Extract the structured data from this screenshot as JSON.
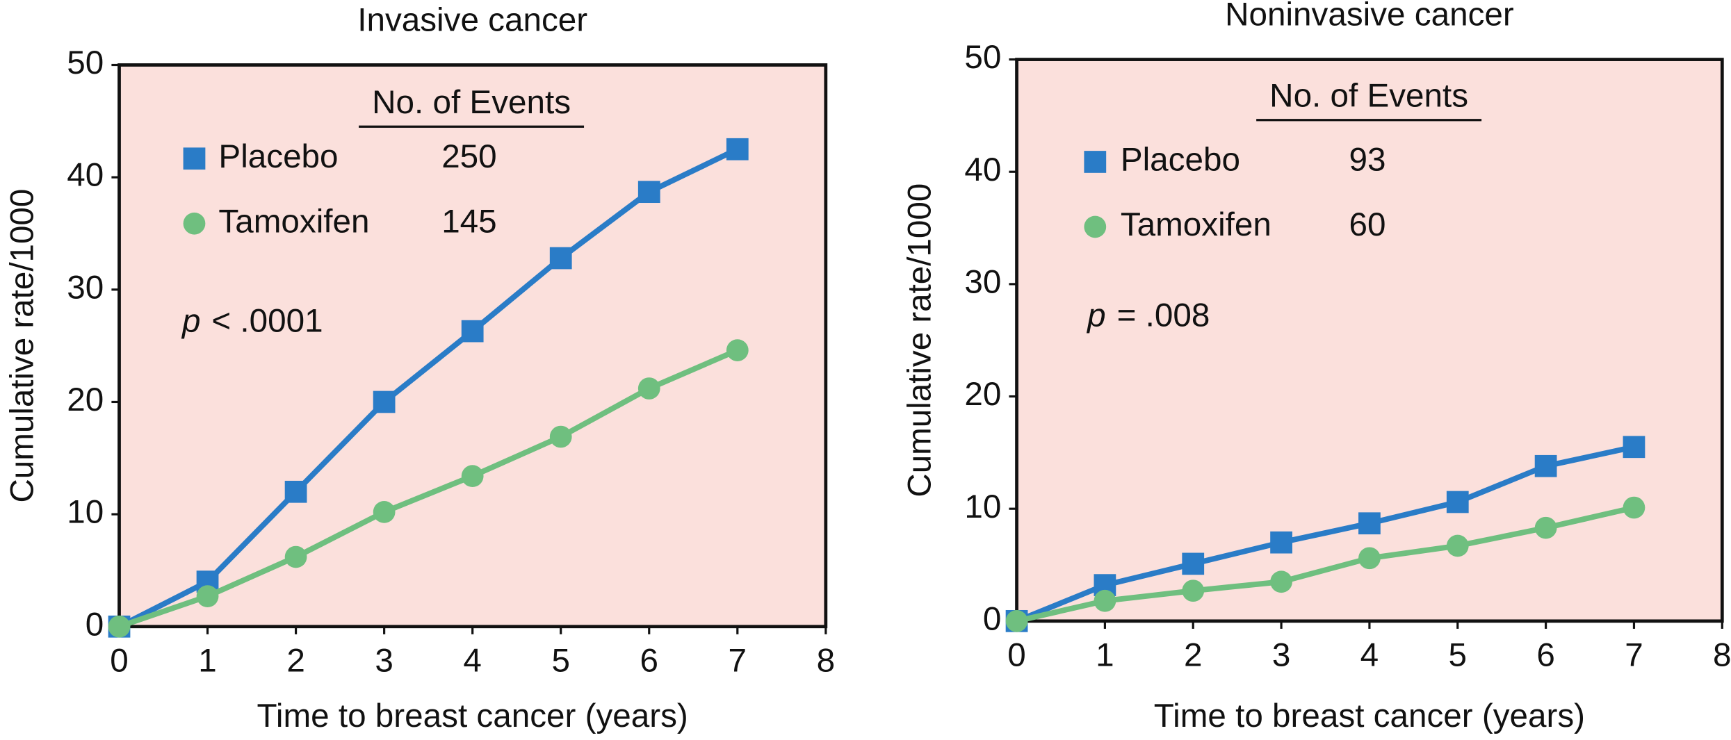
{
  "chart_data": [
    {
      "type": "line",
      "title": "Invasive cancer",
      "xlabel": "Time to breast cancer (years)",
      "ylabel": "Cumulative rate/1000",
      "x": [
        0,
        1,
        2,
        3,
        4,
        5,
        6,
        7
      ],
      "series": [
        {
          "name": "Placebo",
          "color": "#2a7cc7",
          "marker": "square",
          "events": 250,
          "values": [
            0,
            4,
            12,
            20,
            26.3,
            32.8,
            38.7,
            42.5
          ]
        },
        {
          "name": "Tamoxifen",
          "color": "#6fbf7f",
          "marker": "circle",
          "events": 145,
          "values": [
            0,
            2.7,
            6.2,
            10.2,
            13.4,
            16.9,
            21.2,
            24.6
          ]
        }
      ],
      "legend_title": "No. of Events",
      "annotation": [
        "p",
        "< .0001"
      ],
      "xlim": [
        0,
        8
      ],
      "ylim": [
        0,
        50
      ],
      "xticks": [
        0,
        1,
        2,
        3,
        4,
        5,
        6,
        7,
        8
      ],
      "yticks": [
        0,
        10,
        20,
        30,
        40,
        50
      ],
      "background": "#fbe0dc"
    },
    {
      "type": "line",
      "title": "Noninvasive cancer",
      "xlabel": "Time to breast cancer (years)",
      "ylabel": "Cumulative rate/1000",
      "x": [
        0,
        1,
        2,
        3,
        4,
        5,
        6,
        7
      ],
      "series": [
        {
          "name": "Placebo",
          "color": "#2a7cc7",
          "marker": "square",
          "events": 93,
          "values": [
            0,
            3.2,
            5.1,
            7.0,
            8.7,
            10.6,
            13.8,
            15.5
          ]
        },
        {
          "name": "Tamoxifen",
          "color": "#6fbf7f",
          "marker": "circle",
          "events": 60,
          "values": [
            0,
            1.8,
            2.7,
            3.5,
            5.6,
            6.7,
            8.3,
            10.1
          ]
        }
      ],
      "legend_title": "No. of Events",
      "annotation": [
        "p",
        "= .008"
      ],
      "xlim": [
        0,
        8
      ],
      "ylim": [
        0,
        50
      ],
      "xticks": [
        0,
        1,
        2,
        3,
        4,
        5,
        6,
        7,
        8
      ],
      "yticks": [
        0,
        10,
        20,
        30,
        40,
        50
      ],
      "background": "#fbe0dc"
    }
  ]
}
